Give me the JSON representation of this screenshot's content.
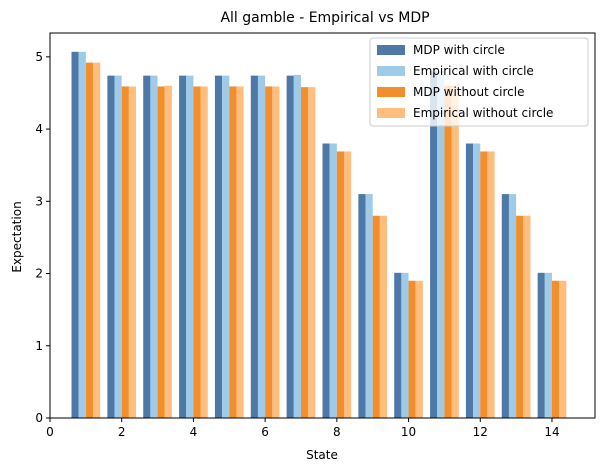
{
  "chart_data": {
    "type": "bar",
    "title": "All gamble - Empirical vs MDP",
    "xlabel": "State",
    "ylabel": "Expectation",
    "x": [
      1,
      2,
      3,
      4,
      5,
      6,
      7,
      8,
      9,
      10,
      11,
      12,
      13,
      14
    ],
    "xlim": [
      0,
      15.2
    ],
    "ylim": [
      0,
      5.33
    ],
    "xticks": [
      0,
      2,
      4,
      6,
      8,
      10,
      12,
      14
    ],
    "yticks": [
      0,
      1,
      2,
      3,
      4,
      5
    ],
    "legend_position": "top-right",
    "grid": false,
    "series": [
      {
        "name": "MDP with circle",
        "color": "#4e79a7",
        "values": [
          5.07,
          4.74,
          4.74,
          4.74,
          4.74,
          4.74,
          4.74,
          3.8,
          3.1,
          2.01,
          4.8,
          3.8,
          3.1,
          2.01
        ]
      },
      {
        "name": "Empirical with circle",
        "color": "#a0cbe8",
        "values": [
          5.07,
          4.74,
          4.74,
          4.74,
          4.74,
          4.74,
          4.75,
          3.8,
          3.1,
          2.01,
          4.8,
          3.8,
          3.1,
          2.01
        ]
      },
      {
        "name": "MDP without circle",
        "color": "#f28e2b",
        "values": [
          4.92,
          4.59,
          4.59,
          4.59,
          4.59,
          4.59,
          4.58,
          3.69,
          2.8,
          1.9,
          4.6,
          3.69,
          2.8,
          1.9
        ]
      },
      {
        "name": "Empirical without circle",
        "color": "#ffbe7d",
        "values": [
          4.92,
          4.59,
          4.6,
          4.59,
          4.59,
          4.59,
          4.58,
          3.69,
          2.8,
          1.9,
          4.6,
          3.69,
          2.8,
          1.9
        ]
      }
    ]
  }
}
